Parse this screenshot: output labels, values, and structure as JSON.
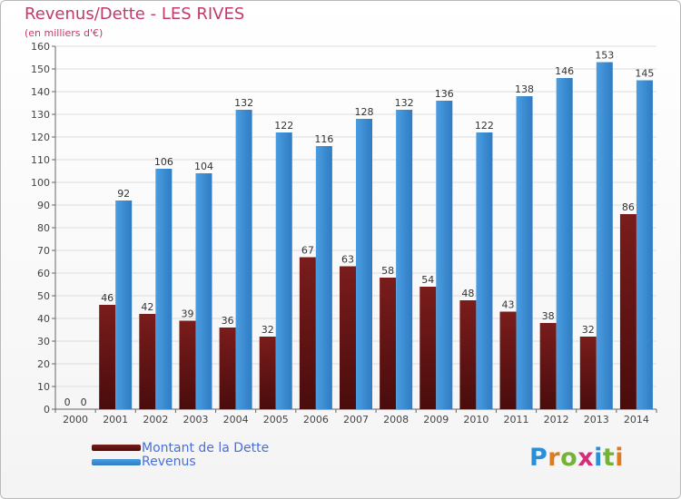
{
  "header": {
    "title": "Revenus/Dette - LES RIVES",
    "subtitle": "(en milliers d'€)"
  },
  "legend": {
    "debt_label": "Montant de la Dette",
    "revenue_label": "Revenus"
  },
  "brand": {
    "name": "Proxiti",
    "letters": [
      "P",
      "r",
      "o",
      "x",
      "i",
      "t",
      "i"
    ],
    "letter_colors": [
      "#2a8fd8",
      "#e07a1f",
      "#74b336",
      "#d42e78",
      "#2a8fd8",
      "#74b336",
      "#e07a1f"
    ]
  },
  "colors": {
    "debt": "#7a1c1c",
    "debt_dark": "#4a0c0c",
    "revenue": "#4a9de0",
    "revenue_dark": "#2f7cc4",
    "axis": "#666666",
    "grid": "#dddddd"
  },
  "chart_data": {
    "type": "bar",
    "title": "Revenus/Dette - LES RIVES",
    "ylabel": "(en milliers d'€)",
    "xlabel": "",
    "ylim": [
      0,
      160
    ],
    "yticks": [
      0,
      10,
      20,
      30,
      40,
      50,
      60,
      70,
      80,
      90,
      100,
      110,
      120,
      130,
      140,
      150,
      160
    ],
    "categories": [
      "2000",
      "2001",
      "2002",
      "2003",
      "2004",
      "2005",
      "2006",
      "2007",
      "2008",
      "2009",
      "2010",
      "2011",
      "2012",
      "2013",
      "2014"
    ],
    "series": [
      {
        "name": "Montant de la Dette",
        "values": [
          0,
          46,
          42,
          39,
          36,
          32,
          67,
          63,
          58,
          54,
          48,
          43,
          38,
          32,
          86
        ]
      },
      {
        "name": "Revenus",
        "values": [
          0,
          92,
          106,
          104,
          132,
          122,
          116,
          128,
          132,
          136,
          122,
          138,
          146,
          153,
          145
        ]
      }
    ],
    "legend_position": "bottom-left"
  }
}
